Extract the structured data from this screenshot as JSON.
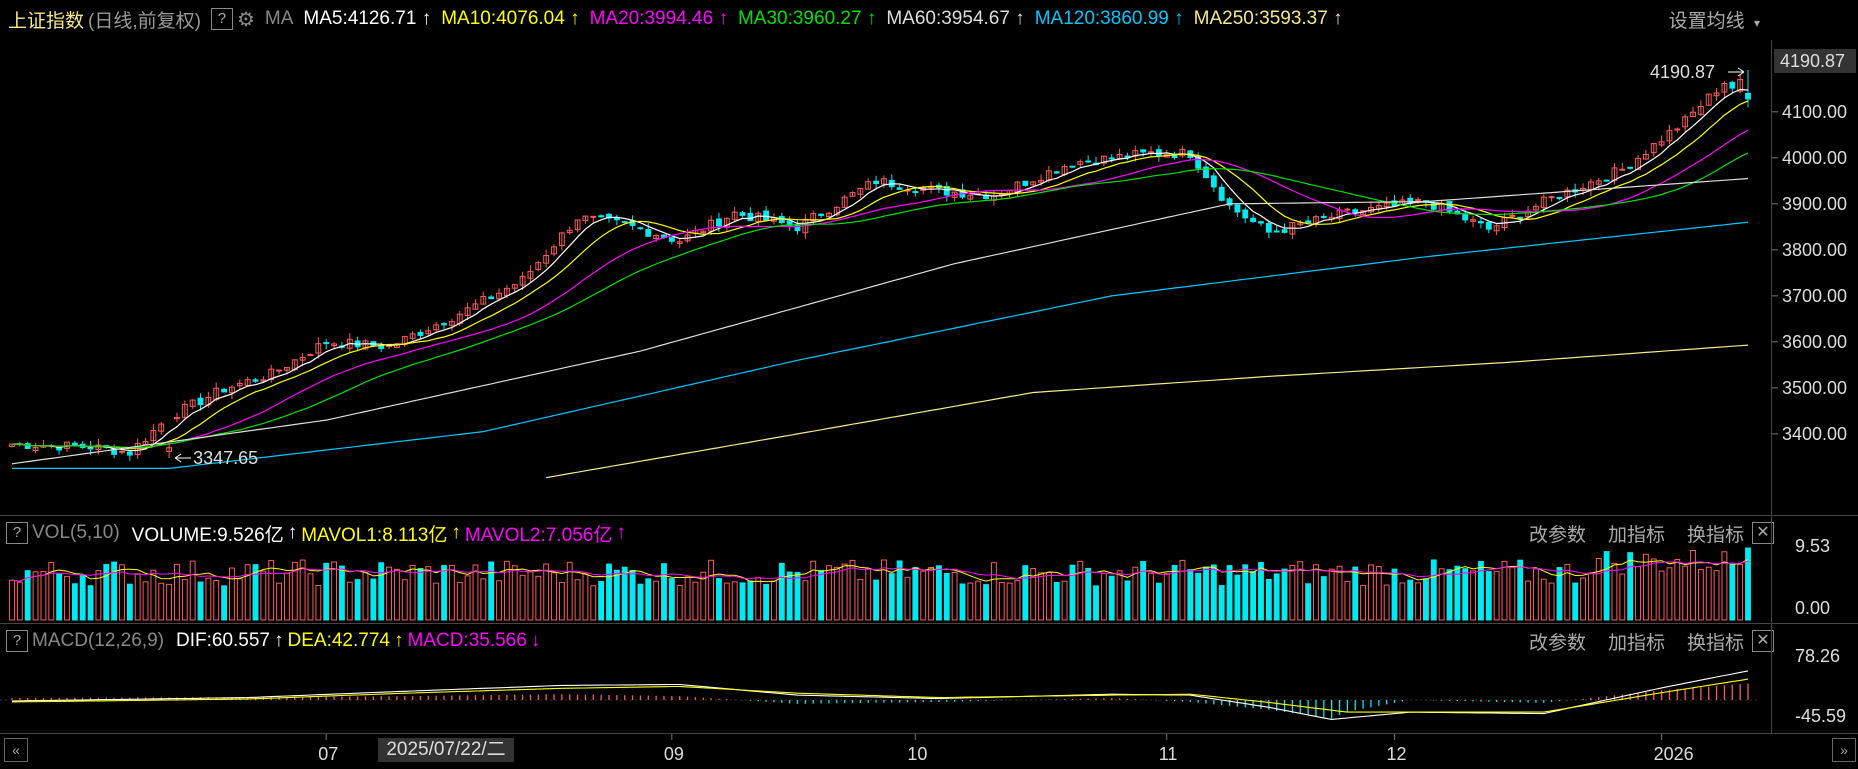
{
  "header": {
    "title": "上证指数",
    "subtitle": "(日线,前复权)",
    "ma_label": "MA",
    "settings_label": "设置均线",
    "indicators": [
      {
        "text": "MA5:4126.71",
        "color": "#ffffff"
      },
      {
        "text": "MA10:4076.04",
        "color": "#ffff00"
      },
      {
        "text": "MA20:3994.46",
        "color": "#ff00ff"
      },
      {
        "text": "MA30:3960.27",
        "color": "#00e000"
      },
      {
        "text": "MA60:3954.67",
        "color": "#dddddd"
      },
      {
        "text": "MA120:3860.99",
        "color": "#00c8ff"
      },
      {
        "text": "MA250:3593.37",
        "color": "#f5e88a"
      }
    ]
  },
  "vol_panel": {
    "label": "VOL(5,10)",
    "volume": "VOLUME:9.526亿",
    "mavol1": "MAVOL1:8.113亿",
    "mavol2": "MAVOL2:7.056亿",
    "links": [
      "改参数",
      "加指标",
      "换指标"
    ],
    "y_top": "9.53",
    "y_bottom": "0.00"
  },
  "macd_panel": {
    "label": "MACD(12,26,9)",
    "dif": "DIF:60.557",
    "dea": "DEA:42.774",
    "macd": "MACD:35.566",
    "links": [
      "改参数",
      "加指标",
      "换指标"
    ],
    "y_top": "78.26",
    "y_bottom": "-45.59"
  },
  "price_axis": {
    "ticks": [
      "4100.00",
      "4000.00",
      "3900.00",
      "3800.00",
      "3700.00",
      "3600.00",
      "3500.00",
      "3400.00"
    ],
    "current": "4190.87"
  },
  "annotations": {
    "high": "4190.87",
    "low": "3347.65"
  },
  "x_axis": {
    "months": [
      "07",
      "09",
      "10",
      "11",
      "12",
      "2026"
    ],
    "cursor_date": "2025/07/22/二"
  },
  "chart_data": {
    "type": "candlestick",
    "ylim": [
      3300,
      4220
    ],
    "close_anchors": [
      [
        0,
        3378
      ],
      [
        10,
        3372
      ],
      [
        15,
        3360
      ],
      [
        20,
        3437
      ],
      [
        27,
        3498
      ],
      [
        33,
        3530
      ],
      [
        40,
        3600
      ],
      [
        48,
        3590
      ],
      [
        58,
        3670
      ],
      [
        65,
        3735
      ],
      [
        72,
        3870
      ],
      [
        78,
        3855
      ],
      [
        85,
        3820
      ],
      [
        92,
        3880
      ],
      [
        100,
        3850
      ],
      [
        110,
        3950
      ],
      [
        118,
        3928
      ],
      [
        125,
        3920
      ],
      [
        135,
        3990
      ],
      [
        145,
        4010
      ],
      [
        150,
        4010
      ],
      [
        155,
        3895
      ],
      [
        160,
        3838
      ],
      [
        170,
        3880
      ],
      [
        180,
        3905
      ],
      [
        188,
        3845
      ],
      [
        196,
        3912
      ],
      [
        205,
        3975
      ],
      [
        213,
        4080
      ],
      [
        218,
        4165
      ],
      [
        221,
        4130
      ]
    ],
    "ma_lines": [
      {
        "name": "MA60",
        "color": "#dddddd",
        "pts": [
          [
            0,
            3335
          ],
          [
            40,
            3430
          ],
          [
            80,
            3580
          ],
          [
            120,
            3770
          ],
          [
            155,
            3900
          ],
          [
            180,
            3905
          ],
          [
            221,
            3955
          ]
        ]
      },
      {
        "name": "MA120",
        "color": "#00c8ff",
        "pts": [
          [
            0,
            3325
          ],
          [
            20,
            3325
          ],
          [
            60,
            3405
          ],
          [
            100,
            3560
          ],
          [
            140,
            3700
          ],
          [
            180,
            3785
          ],
          [
            221,
            3860
          ]
        ]
      },
      {
        "name": "MA250",
        "color": "#f5e88a",
        "pts": [
          [
            68,
            3305
          ],
          [
            100,
            3400
          ],
          [
            130,
            3490
          ],
          [
            160,
            3525
          ],
          [
            190,
            3555
          ],
          [
            221,
            3593
          ]
        ]
      }
    ],
    "macd_dif_anchors": [
      [
        0,
        -2
      ],
      [
        30,
        5
      ],
      [
        50,
        18
      ],
      [
        70,
        30
      ],
      [
        85,
        32
      ],
      [
        100,
        10
      ],
      [
        118,
        3
      ],
      [
        140,
        12
      ],
      [
        150,
        10
      ],
      [
        160,
        -15
      ],
      [
        168,
        -40
      ],
      [
        178,
        -25
      ],
      [
        195,
        -28
      ],
      [
        210,
        25
      ],
      [
        221,
        60
      ]
    ],
    "macd_dea_anchors": [
      [
        0,
        -4
      ],
      [
        30,
        2
      ],
      [
        50,
        14
      ],
      [
        70,
        24
      ],
      [
        85,
        28
      ],
      [
        100,
        14
      ],
      [
        118,
        5
      ],
      [
        140,
        10
      ],
      [
        150,
        12
      ],
      [
        160,
        -5
      ],
      [
        170,
        -25
      ],
      [
        180,
        -25
      ],
      [
        195,
        -25
      ],
      [
        210,
        15
      ],
      [
        221,
        43
      ]
    ]
  }
}
